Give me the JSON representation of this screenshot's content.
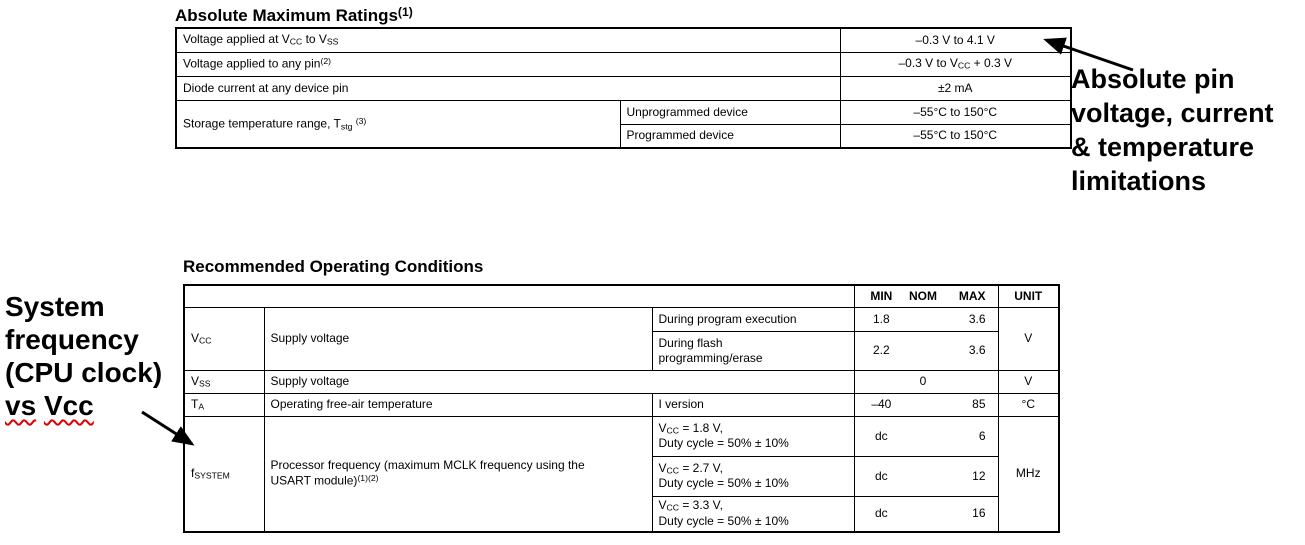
{
  "colors": {
    "background": "#ffffff",
    "text": "#000000",
    "table_border": "#000000",
    "spellcheck_squiggle": "#e00000"
  },
  "abs_max": {
    "title": [
      {
        "t": "Absolute Maximum Ratings"
      },
      {
        "t": "(1)",
        "s": "sup"
      }
    ],
    "rows": [
      {
        "param": [
          {
            "t": "Voltage applied at V"
          },
          {
            "t": "CC",
            "s": "sub"
          },
          {
            "t": " to V"
          },
          {
            "t": "SS",
            "s": "sub"
          }
        ],
        "value": [
          {
            "t": "–0.3 V to 4.1 V"
          }
        ]
      },
      {
        "param": [
          {
            "t": "Voltage applied to any pin"
          },
          {
            "t": "(2)",
            "s": "sup"
          }
        ],
        "value": [
          {
            "t": "–0.3 V to V"
          },
          {
            "t": "CC",
            "s": "sub"
          },
          {
            "t": " + 0.3 V"
          }
        ]
      },
      {
        "param": [
          {
            "t": "Diode current at any device pin"
          }
        ],
        "value": [
          {
            "t": "±2 mA"
          }
        ]
      },
      {
        "param": [
          {
            "t": "Storage temperature range, T"
          },
          {
            "t": "stg",
            "s": "sub"
          },
          {
            "t": " "
          },
          {
            "t": "(3)",
            "s": "sup"
          }
        ],
        "sub_rows": [
          {
            "cond": "Unprogrammed device",
            "value": "–55°C to 150°C"
          },
          {
            "cond": "Programmed device",
            "value": "–55°C to 150°C"
          }
        ]
      }
    ]
  },
  "rec_op": {
    "title": "Recommended Operating Conditions",
    "headers": {
      "min": "MIN",
      "nom": "NOM",
      "max": "MAX",
      "unit": "UNIT"
    },
    "rows": {
      "vcc": {
        "symbol": [
          {
            "t": "V"
          },
          {
            "t": "CC",
            "s": "sub"
          }
        ],
        "param": "Supply voltage",
        "sub": [
          {
            "cond": [
              {
                "t": "During program execution"
              }
            ],
            "min": "1.8",
            "nom": "",
            "max": "3.6"
          },
          {
            "cond": [
              {
                "t": "During flash"
              },
              {
                "s": "br"
              },
              {
                "t": "programming/erase"
              }
            ],
            "min": "2.2",
            "nom": "",
            "max": "3.6"
          }
        ],
        "unit": "V"
      },
      "vss": {
        "symbol": [
          {
            "t": "V"
          },
          {
            "t": "SS",
            "s": "sub"
          }
        ],
        "param": "Supply voltage",
        "min": "",
        "nom": "0",
        "max": "",
        "unit": "V"
      },
      "ta": {
        "symbol": [
          {
            "t": "T"
          },
          {
            "t": "A",
            "s": "sub"
          }
        ],
        "param": "Operating free-air temperature",
        "cond": [
          {
            "t": "I version"
          }
        ],
        "min": "–40",
        "nom": "",
        "max": "85",
        "unit": "°C"
      },
      "fsystem": {
        "symbol": [
          {
            "t": "f"
          },
          {
            "t": "SYSTEM",
            "s": "sub"
          }
        ],
        "param": [
          {
            "t": "Processor frequency (maximum MCLK frequency using the"
          },
          {
            "s": "br"
          },
          {
            "t": "USART module)"
          },
          {
            "t": "(1)(2)",
            "s": "sup"
          }
        ],
        "sub": [
          {
            "cond": [
              {
                "t": "V"
              },
              {
                "t": "CC",
                "s": "sub"
              },
              {
                "t": " = 1.8 V,"
              },
              {
                "s": "br"
              },
              {
                "t": "Duty cycle = 50% ± 10%"
              }
            ],
            "min": "dc",
            "nom": "",
            "max": "6"
          },
          {
            "cond": [
              {
                "t": "V"
              },
              {
                "t": "CC",
                "s": "sub"
              },
              {
                "t": " = 2.7 V,"
              },
              {
                "s": "br"
              },
              {
                "t": "Duty cycle = 50% ± 10%"
              }
            ],
            "min": "dc",
            "nom": "",
            "max": "12"
          },
          {
            "cond": [
              {
                "t": "V"
              },
              {
                "t": "CC",
                "s": "sub"
              },
              {
                "t": " = 3.3 V,"
              },
              {
                "s": "br"
              },
              {
                "t": "Duty cycle = 50% ± 10%"
              }
            ],
            "min": "dc",
            "nom": "",
            "max": "16"
          }
        ],
        "unit": "MHz"
      }
    }
  },
  "annotations": {
    "right": {
      "line1": "Absolute pin",
      "line2": "voltage, current",
      "line3": "& temperature",
      "line4": "limitations"
    },
    "left": {
      "line1": "System",
      "line2": "frequency",
      "line3": "(CPU clock)",
      "line4": [
        {
          "t": "vs",
          "s": "misspell"
        },
        {
          "t": " "
        },
        {
          "t": "Vcc",
          "s": "misspell"
        }
      ]
    }
  }
}
